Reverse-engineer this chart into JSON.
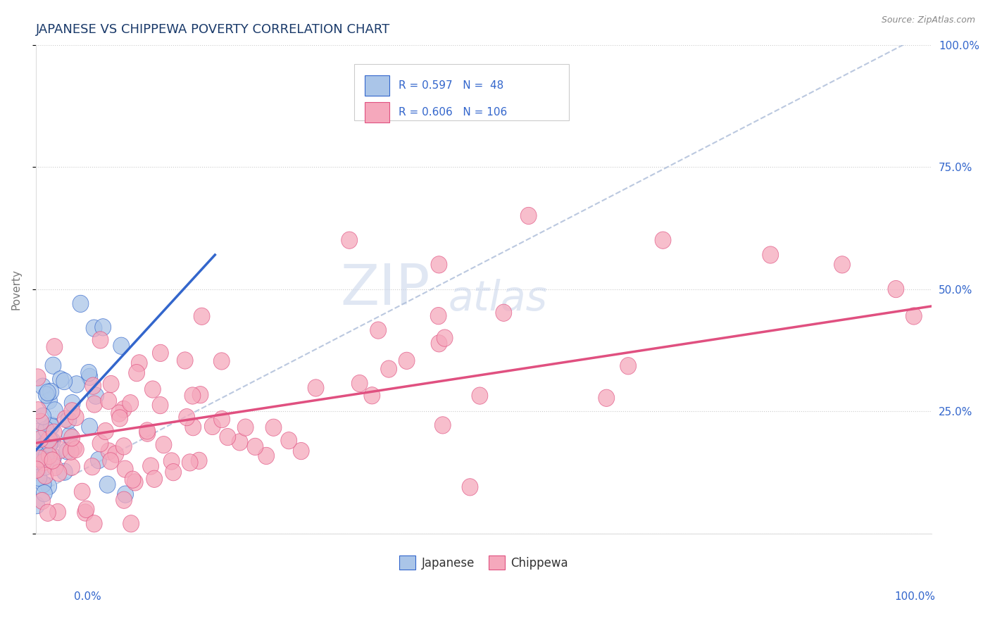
{
  "title": "JAPANESE VS CHIPPEWA POVERTY CORRELATION CHART",
  "source": "Source: ZipAtlas.com",
  "ylabel": "Poverty",
  "japanese_R": 0.597,
  "japanese_N": 48,
  "chippewa_R": 0.606,
  "chippewa_N": 106,
  "japanese_color": "#aac5e8",
  "chippewa_color": "#f5a8bc",
  "japanese_line_color": "#3366cc",
  "chippewa_line_color": "#e05080",
  "title_color": "#1a3a6a",
  "label_color": "#3366cc",
  "background_color": "#ffffff",
  "grid_color": "#cccccc",
  "right_ytick_labels": [
    "100.0%",
    "75.0%",
    "50.0%",
    "25.0%"
  ],
  "right_ytick_values": [
    1.0,
    0.75,
    0.5,
    0.25
  ],
  "watermark_zip": "ZIP",
  "watermark_atlas": "atlas",
  "dash_line_color": "#aabbd8",
  "legend_border_color": "#cccccc"
}
